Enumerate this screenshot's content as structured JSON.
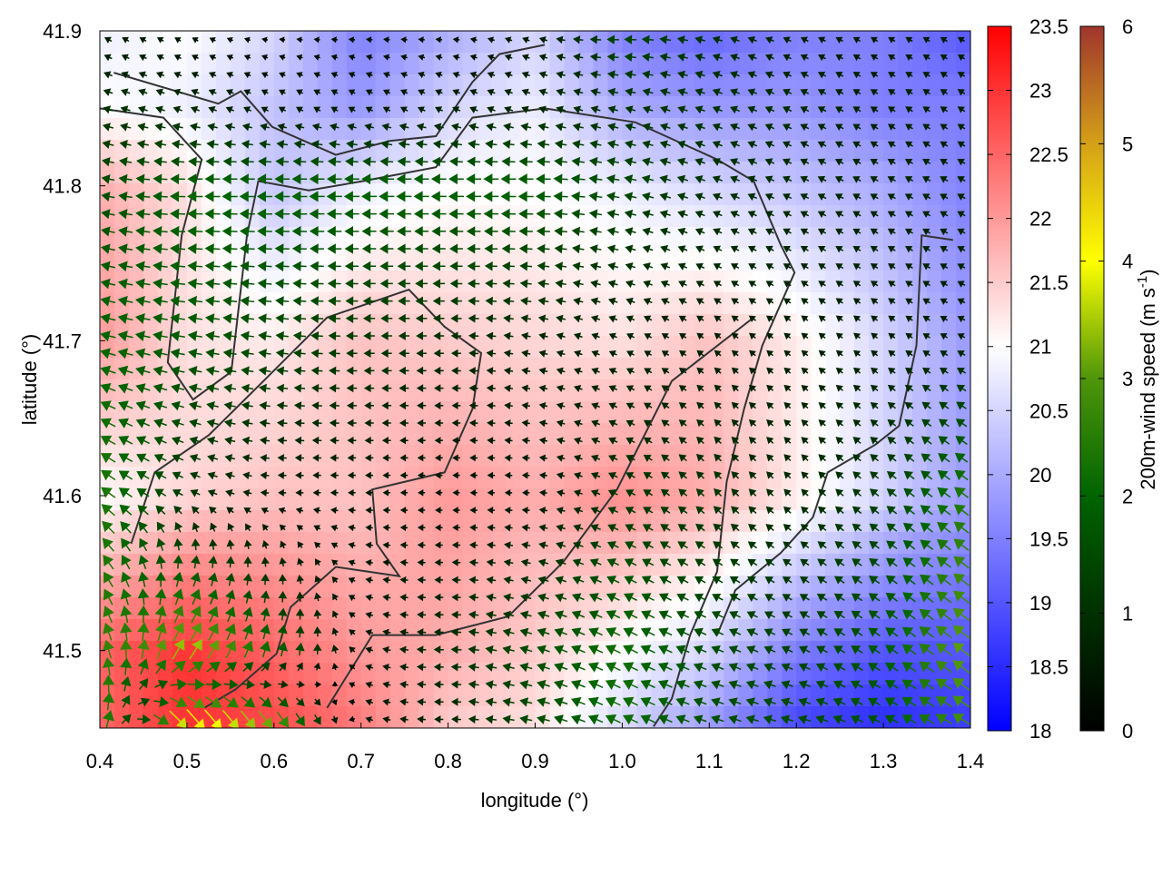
{
  "chart_data": {
    "type": "heatmap",
    "title": "",
    "xlabel": "longitude (°)",
    "ylabel": "latitude (°)",
    "xlim": [
      0.4,
      1.4
    ],
    "ylim": [
      41.45,
      41.9
    ],
    "xticks": [
      "0.4",
      "0.5",
      "0.6",
      "0.7",
      "0.8",
      "0.9",
      "1.0",
      "1.1",
      "1.2",
      "1.3",
      "1.4"
    ],
    "yticks": [
      "41.5",
      "41.6",
      "41.7",
      "41.8",
      "41.9"
    ],
    "grid": false,
    "temperature": {
      "colorbar_range": [
        18,
        23.5
      ],
      "colorbar_ticks": [
        "18",
        "18.5",
        "19",
        "19.5",
        "20",
        "20.5",
        "21",
        "21.5",
        "22",
        "22.5",
        "23",
        "23.5"
      ],
      "colors": {
        "low": "#0000ff",
        "mid": "#ffffff",
        "high": "#ff0000"
      },
      "lon": [
        0.4,
        0.5,
        0.6,
        0.7,
        0.8,
        0.9,
        1.0,
        1.1,
        1.2,
        1.3,
        1.4
      ],
      "lat": [
        41.9,
        41.85,
        41.8,
        41.7,
        41.6,
        41.5,
        41.45
      ],
      "values": [
        [
          20.8,
          21.0,
          20.5,
          19.5,
          20.0,
          20.5,
          19.5,
          19.2,
          19.5,
          19.5,
          19.0
        ],
        [
          21.0,
          20.8,
          20.3,
          19.8,
          20.5,
          20.8,
          20.0,
          19.8,
          19.8,
          19.5,
          19.5
        ],
        [
          21.8,
          21.3,
          20.3,
          20.8,
          21.0,
          21.0,
          20.8,
          20.5,
          20.3,
          20.0,
          19.5
        ],
        [
          22.0,
          21.3,
          21.2,
          21.6,
          21.5,
          21.4,
          21.3,
          21.6,
          21.2,
          20.5,
          19.8
        ],
        [
          21.0,
          21.4,
          21.6,
          21.6,
          22.0,
          21.8,
          22.1,
          21.8,
          21.2,
          20.5,
          19.8
        ],
        [
          22.5,
          23.0,
          22.5,
          22.0,
          21.8,
          21.5,
          21.0,
          20.5,
          19.5,
          19.0,
          19.0
        ],
        [
          22.5,
          23.0,
          22.8,
          22.3,
          21.5,
          21.3,
          20.5,
          19.8,
          18.8,
          18.5,
          18.7
        ]
      ]
    },
    "wind": {
      "label": "200m-wind speed (m s",
      "label_sup": "-1",
      "label_end": ")",
      "colorbar_range": [
        0,
        6
      ],
      "colorbar_ticks": [
        "0",
        "1",
        "2",
        "3",
        "4",
        "5",
        "6"
      ],
      "colormap": [
        "#000000",
        "#003000",
        "#006400",
        "#4e960a",
        "#ffff00",
        "#d4a018",
        "#a0352c"
      ],
      "u": [
        [
          -0.5,
          -0.3,
          -0.2,
          -0.3,
          -0.3,
          -0.5,
          -1.5,
          -1.0,
          -0.6,
          -0.5,
          -0.5
        ],
        [
          -1.0,
          -0.8,
          -0.5,
          -0.5,
          -0.6,
          -0.8,
          -1.0,
          -1.0,
          -0.8,
          -0.6,
          -0.6
        ],
        [
          -1.5,
          -2.0,
          -2.0,
          -2.0,
          -2.0,
          -2.0,
          -1.5,
          -1.0,
          -0.8,
          -0.7,
          -0.7
        ],
        [
          -2.0,
          -1.8,
          -1.5,
          -1.2,
          -1.0,
          -0.8,
          -0.6,
          -0.5,
          -0.5,
          -0.5,
          -0.6
        ],
        [
          -2.0,
          -1.0,
          -0.6,
          -0.5,
          -0.4,
          -0.5,
          -1.0,
          -0.8,
          -0.6,
          -1.0,
          -2.0
        ],
        [
          -1.0,
          2.0,
          0.5,
          -0.5,
          -1.0,
          -1.5,
          -2.0,
          -1.5,
          -1.2,
          -1.5,
          -2.5
        ],
        [
          0.5,
          3.0,
          2.0,
          -0.5,
          -0.8,
          -1.5,
          -2.0,
          -1.5,
          -1.5,
          -1.5,
          -2.5
        ]
      ],
      "v": [
        [
          0.3,
          0.2,
          0.0,
          0.0,
          0.0,
          0.2,
          0.0,
          0.3,
          0.3,
          0.3,
          0.3
        ],
        [
          0.3,
          0.3,
          0.3,
          0.3,
          0.3,
          0.3,
          0.3,
          0.4,
          0.4,
          0.4,
          0.4
        ],
        [
          0.3,
          0.0,
          0.0,
          0.0,
          0.0,
          0.0,
          0.3,
          0.4,
          0.4,
          0.4,
          0.4
        ],
        [
          0.5,
          0.3,
          0.2,
          0.0,
          0.0,
          0.2,
          0.3,
          0.4,
          0.4,
          0.4,
          0.3
        ],
        [
          1.5,
          0.5,
          0.0,
          0.0,
          0.0,
          0.0,
          0.5,
          0.8,
          0.6,
          0.8,
          1.5
        ],
        [
          2.5,
          3.0,
          2.0,
          0.2,
          0.0,
          0.5,
          1.0,
          0.6,
          0.6,
          1.0,
          2.0
        ],
        [
          3.0,
          -4.0,
          -3.0,
          0.2,
          0.0,
          0.3,
          1.0,
          0.5,
          0.4,
          0.8,
          1.5
        ]
      ]
    },
    "contours": [
      [
        [
          0.4,
          41.85
        ],
        [
          0.473,
          41.844
        ],
        [
          0.517,
          41.817
        ],
        [
          0.494,
          41.768
        ],
        [
          0.478,
          41.686
        ],
        [
          0.507,
          41.662
        ],
        [
          0.551,
          41.68
        ],
        [
          0.569,
          41.768
        ],
        [
          0.582,
          41.803
        ],
        [
          0.64,
          41.797
        ],
        [
          0.702,
          41.803
        ],
        [
          0.786,
          41.812
        ],
        [
          0.828,
          41.844
        ],
        [
          0.911,
          41.85
        ],
        [
          1.015,
          41.841
        ],
        [
          1.109,
          41.817
        ],
        [
          1.151,
          41.803
        ],
        [
          1.182,
          41.762
        ],
        [
          1.198,
          41.744
        ],
        [
          1.161,
          41.697
        ],
        [
          1.14,
          41.656
        ],
        [
          1.12,
          41.609
        ],
        [
          1.109,
          41.551
        ],
        [
          1.078,
          41.51
        ],
        [
          1.057,
          41.469
        ],
        [
          1.036,
          41.451
        ]
      ],
      [
        [
          0.436,
          41.569
        ],
        [
          0.463,
          41.615
        ],
        [
          0.525,
          41.639
        ],
        [
          0.588,
          41.674
        ],
        [
          0.661,
          41.715
        ],
        [
          0.755,
          41.733
        ],
        [
          0.796,
          41.709
        ],
        [
          0.838,
          41.692
        ],
        [
          0.828,
          41.656
        ],
        [
          0.796,
          41.615
        ],
        [
          0.713,
          41.604
        ],
        [
          0.718,
          41.569
        ],
        [
          0.744,
          41.548
        ],
        [
          0.671,
          41.554
        ],
        [
          0.619,
          41.528
        ],
        [
          0.603,
          41.498
        ],
        [
          0.556,
          41.475
        ],
        [
          0.52,
          41.463
        ]
      ],
      [
        [
          1.38,
          41.765
        ],
        [
          1.344,
          41.768
        ],
        [
          1.338,
          41.697
        ],
        [
          1.318,
          41.645
        ],
        [
          1.291,
          41.633
        ],
        [
          1.236,
          41.615
        ],
        [
          1.219,
          41.586
        ],
        [
          1.182,
          41.563
        ],
        [
          1.13,
          41.539
        ],
        [
          1.109,
          41.51
        ]
      ],
      [
        [
          0.661,
          41.463
        ],
        [
          0.713,
          41.51
        ],
        [
          0.786,
          41.51
        ],
        [
          0.869,
          41.522
        ],
        [
          0.932,
          41.557
        ],
        [
          0.994,
          41.604
        ],
        [
          1.057,
          41.674
        ],
        [
          1.151,
          41.715
        ]
      ],
      [
        [
          0.416,
          41.873
        ],
        [
          0.536,
          41.853
        ],
        [
          0.562,
          41.861
        ],
        [
          0.598,
          41.838
        ],
        [
          0.671,
          41.82
        ],
        [
          0.734,
          41.829
        ],
        [
          0.786,
          41.832
        ],
        [
          0.828,
          41.867
        ],
        [
          0.859,
          41.885
        ],
        [
          0.911,
          41.891
        ]
      ]
    ]
  }
}
